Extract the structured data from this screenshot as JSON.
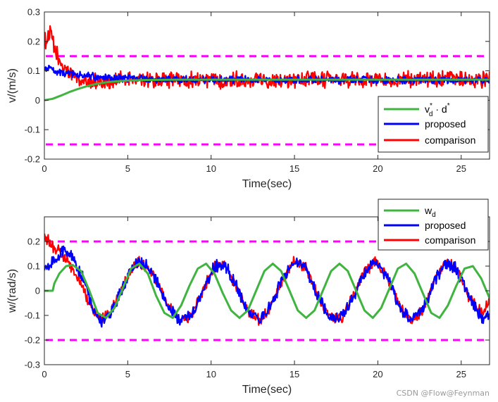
{
  "watermark": "CSDN @Flow@Feynman",
  "chart_data": [
    {
      "type": "line",
      "xlabel": "Time(sec)",
      "ylabel": "v/(m/s)",
      "xlim": [
        0,
        26.7
      ],
      "ylim": [
        -0.2,
        0.3
      ],
      "xticks": [
        0,
        5,
        10,
        15,
        20,
        25
      ],
      "yticks": [
        -0.2,
        -0.1,
        0,
        0.1,
        0.2,
        0.3
      ],
      "ytick_labels": [
        "-0.2",
        "-0.1",
        "0",
        "0.1",
        "0.2",
        "0.3"
      ],
      "grid": false,
      "legend_position": "lower-right",
      "legend": [
        {
          "base": "v",
          "sub": "d",
          "sup": "*",
          "mid": " · d",
          "sup2": "*",
          "color": "#3fb43f"
        },
        {
          "text": "proposed",
          "color": "#0000ff"
        },
        {
          "text": "comparison",
          "color": "#ff0000"
        }
      ],
      "bounds": [
        {
          "y": 0.15,
          "color": "#ff00ff"
        },
        {
          "y": -0.15,
          "color": "#ff00ff"
        }
      ],
      "series": [
        {
          "color": "#ff0000",
          "x": [
            0,
            0.2,
            0.4,
            0.6,
            0.8,
            1.0,
            1.3,
            1.6,
            2.0,
            2.5,
            3.0,
            3.5,
            4.0,
            5.0,
            6.0,
            7.0,
            8.0,
            10.0,
            12.0,
            14.0,
            16.0,
            18.0,
            20.0,
            22.0,
            24.0,
            26.7
          ],
          "values": [
            0.2,
            0.21,
            0.23,
            0.17,
            0.15,
            0.12,
            0.1,
            0.09,
            0.07,
            0.06,
            0.065,
            0.06,
            0.065,
            0.07,
            0.07,
            0.07,
            0.07,
            0.07,
            0.07,
            0.07,
            0.07,
            0.07,
            0.07,
            0.07,
            0.07,
            0.07
          ],
          "noise": 0.022
        },
        {
          "color": "#0000ff",
          "x": [
            0,
            0.3,
            0.6,
            1.0,
            1.5,
            2.0,
            2.5,
            3.0,
            3.5,
            4.0,
            5.0,
            6.0,
            7.0,
            8.0,
            10.0,
            12.0,
            14.0,
            16.0,
            18.0,
            20.0,
            22.0,
            24.0,
            26.7
          ],
          "values": [
            0.105,
            0.108,
            0.1,
            0.095,
            0.09,
            0.085,
            0.083,
            0.08,
            0.078,
            0.077,
            0.075,
            0.073,
            0.071,
            0.07,
            0.069,
            0.069,
            0.069,
            0.069,
            0.069,
            0.069,
            0.069,
            0.069,
            0.069
          ],
          "noise": 0.01
        },
        {
          "color": "#3fb43f",
          "x": [
            0,
            0.5,
            1.0,
            1.5,
            2.0,
            2.5,
            3.0,
            3.5,
            4.0,
            5.0,
            6.0,
            8.0,
            10.0,
            15.0,
            20.0,
            26.7
          ],
          "values": [
            0,
            0.005,
            0.016,
            0.028,
            0.038,
            0.047,
            0.054,
            0.059,
            0.063,
            0.067,
            0.069,
            0.07,
            0.07,
            0.07,
            0.07,
            0.07
          ],
          "noise": 0
        }
      ]
    },
    {
      "type": "line",
      "xlabel": "Time(sec)",
      "ylabel": "w/(rad/s)",
      "xlim": [
        0,
        26.7
      ],
      "ylim": [
        -0.3,
        0.3
      ],
      "xticks": [
        0,
        5,
        10,
        15,
        20,
        25
      ],
      "yticks": [
        -0.3,
        -0.2,
        -0.1,
        0,
        0.1,
        0.2
      ],
      "ytick_labels": [
        "-0.3",
        "-0.2",
        "-0.1",
        "0",
        "0.1",
        "0.2"
      ],
      "grid": false,
      "legend_position": "top-right",
      "legend": [
        {
          "base": "w",
          "sub": "d",
          "color": "#3fb43f"
        },
        {
          "text": "proposed",
          "color": "#0000ff"
        },
        {
          "text": "comparison",
          "color": "#ff0000"
        }
      ],
      "bounds": [
        {
          "y": 0.2,
          "color": "#ff00ff"
        },
        {
          "y": -0.2,
          "color": "#ff00ff"
        }
      ],
      "series": [
        {
          "color": "#ff0000",
          "x": [
            0,
            0.2,
            0.4,
            0.7,
            1.0,
            1.4,
            1.8,
            2.3,
            2.8,
            3.4,
            3.9,
            4.5,
            5.0,
            5.6,
            6.2,
            6.8,
            7.4,
            8.1,
            8.8,
            9.5,
            10.2,
            10.8,
            11.5,
            12.2,
            12.9,
            13.6,
            14.3,
            15.0,
            15.7,
            16.4,
            17.1,
            17.8,
            18.5,
            19.2,
            19.9,
            20.6,
            21.3,
            22.0,
            22.7,
            23.4,
            24.1,
            24.8,
            25.5,
            26.2,
            26.7
          ],
          "values": [
            0.215,
            0.21,
            0.19,
            0.17,
            0.15,
            0.12,
            0.08,
            0.01,
            -0.07,
            -0.12,
            -0.09,
            -0.02,
            0.06,
            0.12,
            0.1,
            0.03,
            -0.06,
            -0.12,
            -0.1,
            0.0,
            0.1,
            0.11,
            0.02,
            -0.08,
            -0.12,
            -0.06,
            0.05,
            0.12,
            0.09,
            -0.02,
            -0.1,
            -0.11,
            -0.03,
            0.08,
            0.12,
            0.05,
            -0.06,
            -0.12,
            -0.08,
            0.04,
            0.12,
            0.08,
            -0.03,
            -0.09,
            -0.05
          ],
          "noise": 0.018
        },
        {
          "color": "#0000ff",
          "x": [
            0,
            0.3,
            0.6,
            1.0,
            1.4,
            1.8,
            2.3,
            2.8,
            3.4,
            3.9,
            4.5,
            5.0,
            5.6,
            6.2,
            6.8,
            7.4,
            8.1,
            8.8,
            9.5,
            10.2,
            10.8,
            11.5,
            12.2,
            12.9,
            13.6,
            14.3,
            15.0,
            15.7,
            16.4,
            17.1,
            17.8,
            18.5,
            19.2,
            19.9,
            20.6,
            21.3,
            22.0,
            22.7,
            23.4,
            24.1,
            24.8,
            25.5,
            26.2,
            26.7
          ],
          "values": [
            0.095,
            0.1,
            0.12,
            0.16,
            0.16,
            0.12,
            0.05,
            -0.05,
            -0.13,
            -0.1,
            -0.02,
            0.06,
            0.12,
            0.1,
            0.03,
            -0.06,
            -0.12,
            -0.1,
            0.0,
            0.1,
            0.11,
            0.02,
            -0.08,
            -0.12,
            -0.06,
            0.05,
            0.12,
            0.09,
            -0.02,
            -0.1,
            -0.11,
            -0.03,
            0.08,
            0.12,
            0.05,
            -0.06,
            -0.12,
            -0.08,
            0.04,
            0.12,
            0.08,
            -0.03,
            -0.11,
            -0.1
          ],
          "noise": 0.02
        },
        {
          "color": "#3fb43f",
          "x": [
            0,
            0.5,
            0.6,
            0.9,
            1.3,
            1.7,
            2.2,
            2.7,
            3.2,
            3.7,
            4.2,
            4.7,
            5.2,
            5.7,
            6.2,
            6.7,
            7.2,
            7.7,
            8.2,
            8.7,
            9.2,
            9.7,
            10.2,
            10.7,
            11.2,
            11.7,
            12.2,
            12.7,
            13.2,
            13.7,
            14.2,
            14.7,
            15.2,
            15.7,
            16.2,
            16.7,
            17.2,
            17.7,
            18.2,
            18.7,
            19.2,
            19.7,
            20.2,
            20.7,
            21.2,
            21.7,
            22.2,
            22.7,
            23.2,
            23.7,
            24.2,
            24.7,
            25.2,
            25.7,
            26.2,
            26.7
          ],
          "values": [
            0,
            0.0,
            0.03,
            0.07,
            0.1,
            0.105,
            0.08,
            0.0,
            -0.09,
            -0.11,
            -0.07,
            0.01,
            0.09,
            0.11,
            0.07,
            -0.02,
            -0.09,
            -0.11,
            -0.06,
            0.02,
            0.09,
            0.11,
            0.07,
            -0.01,
            -0.08,
            -0.11,
            -0.08,
            0.0,
            0.08,
            0.11,
            0.08,
            0.0,
            -0.08,
            -0.11,
            -0.08,
            0.0,
            0.08,
            0.11,
            0.08,
            0.0,
            -0.08,
            -0.11,
            -0.07,
            0.01,
            0.09,
            0.11,
            0.07,
            -0.01,
            -0.09,
            -0.11,
            -0.06,
            0.02,
            0.09,
            0.1,
            0.05,
            -0.03
          ],
          "noise": 0
        }
      ]
    }
  ]
}
